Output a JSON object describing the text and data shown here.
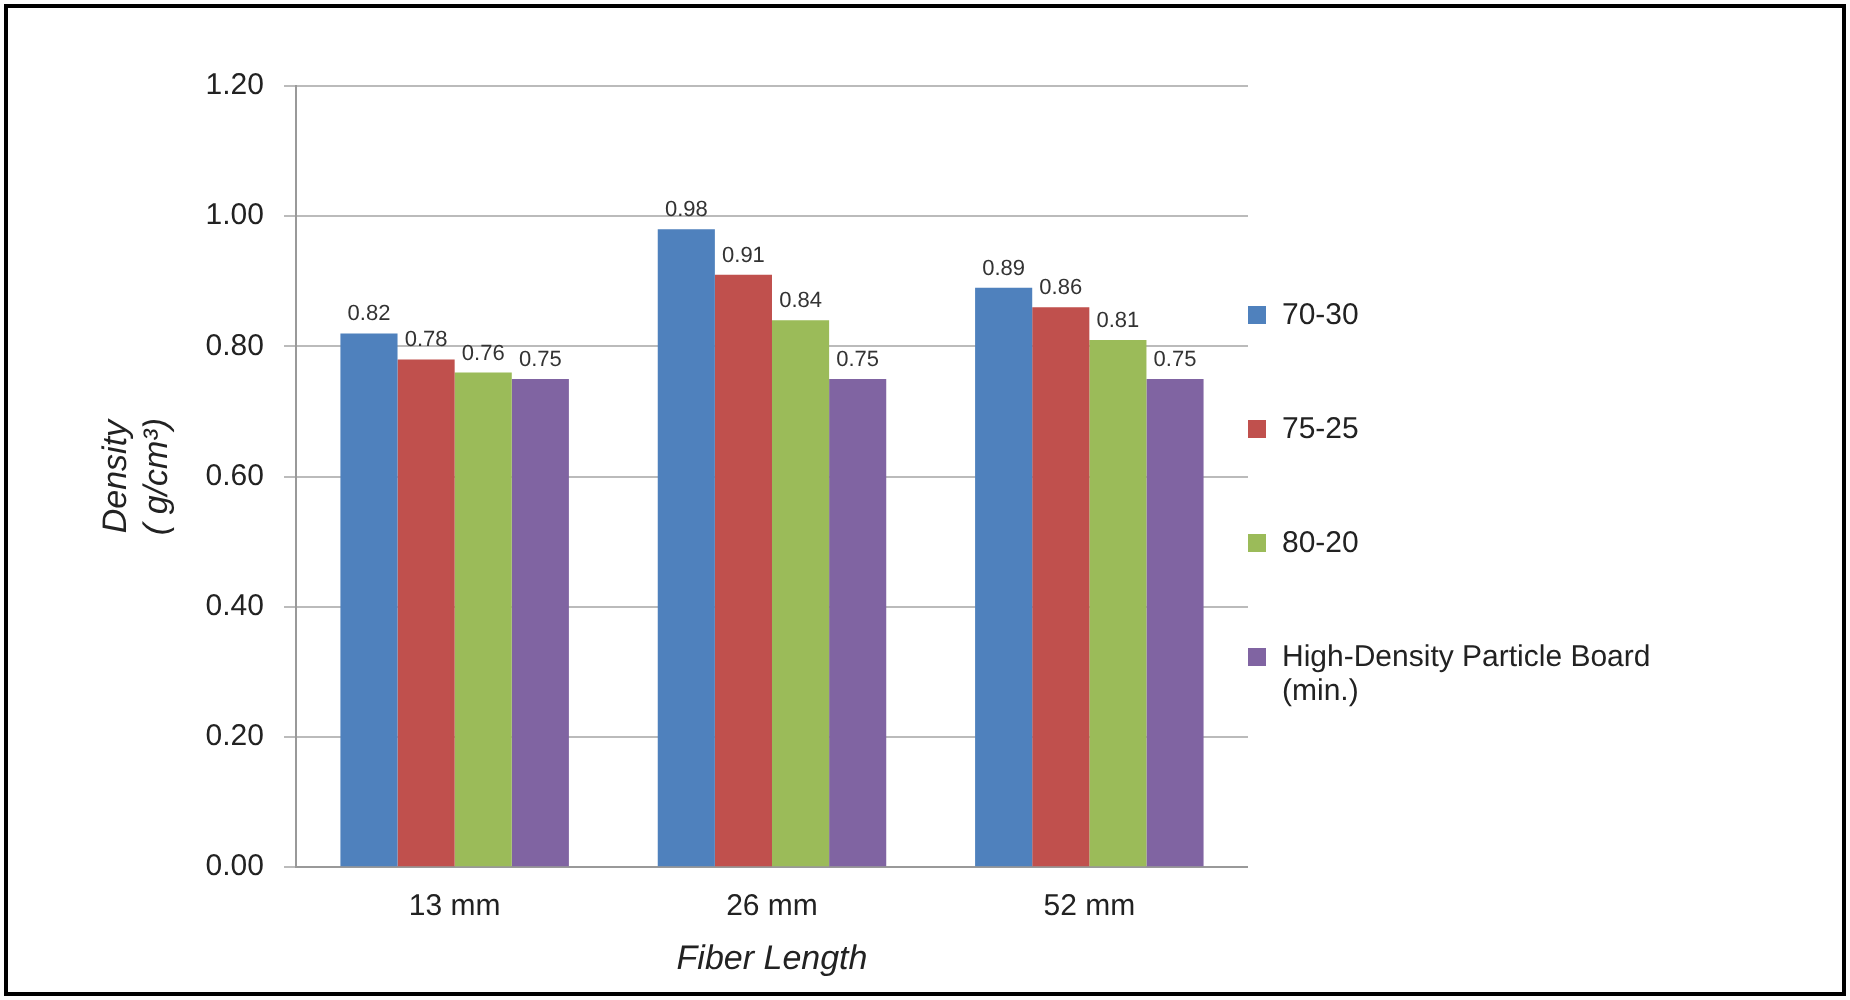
{
  "chart_data": {
    "type": "bar",
    "xlabel": "Fiber Length",
    "ylabel": "Density\n( g/cm³)",
    "categories": [
      "13 mm",
      "26 mm",
      "52 mm"
    ],
    "series": [
      {
        "name": "70-30",
        "color": "#4f81bd",
        "values": [
          0.82,
          0.98,
          0.89
        ]
      },
      {
        "name": "75-25",
        "color": "#c0504d",
        "values": [
          0.78,
          0.91,
          0.86
        ]
      },
      {
        "name": "80-20",
        "color": "#9bbb59",
        "values": [
          0.76,
          0.84,
          0.81
        ]
      },
      {
        "name": "High-Density Particle Board (min.)",
        "color": "#8064a2",
        "values": [
          0.75,
          0.75,
          0.75
        ]
      }
    ],
    "ylim": [
      0,
      1.2
    ],
    "yticks": [
      {
        "value": 0,
        "label": "0.00"
      },
      {
        "value": 0.2,
        "label": "0.20"
      },
      {
        "value": 0.4,
        "label": "0.40"
      },
      {
        "value": 0.6,
        "label": "0.60"
      },
      {
        "value": 0.8,
        "label": "0.80"
      },
      {
        "value": 1,
        "label": "1.00"
      },
      {
        "value": 1.2,
        "label": "1.20"
      }
    ],
    "grid": "y",
    "legend": "right",
    "data_labels": true
  }
}
